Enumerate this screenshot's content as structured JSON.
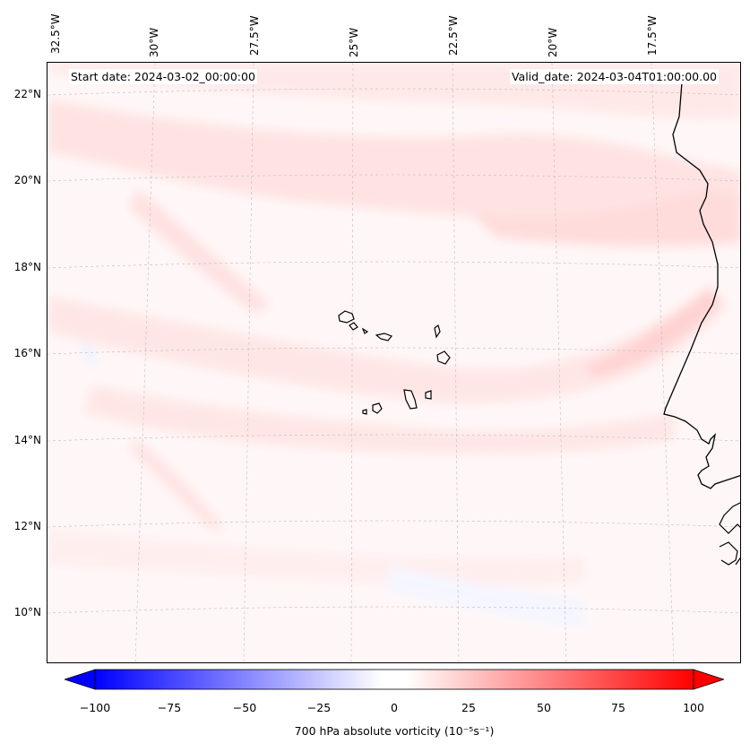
{
  "map": {
    "start_date": "Start date: 2024-03-02_00:00:00",
    "valid_date": "Valid_date: 2024-03-04T01:00:00.00",
    "lon_labels": [
      "32.5°W",
      "30°W",
      "27.5°W",
      "25°W",
      "22.5°W",
      "20°W",
      "17.5°W"
    ],
    "lat_labels": [
      "22°N",
      "20°N",
      "18°N",
      "16°N",
      "14°N",
      "12°N",
      "10°N"
    ],
    "colors": {
      "coast": "#000000",
      "grid": "#bdbdbd",
      "background": "#fff7f7"
    }
  },
  "colorbar": {
    "ticks": [
      "−100",
      "−75",
      "−50",
      "−25",
      "0",
      "25",
      "50",
      "75",
      "100"
    ],
    "range": [
      -100,
      100
    ],
    "label": "700 hPa absolute vorticity (10⁻⁵s⁻¹)",
    "colors": {
      "min": "#0000ff",
      "mid": "#ffffff",
      "max": "#ff0000"
    }
  }
}
